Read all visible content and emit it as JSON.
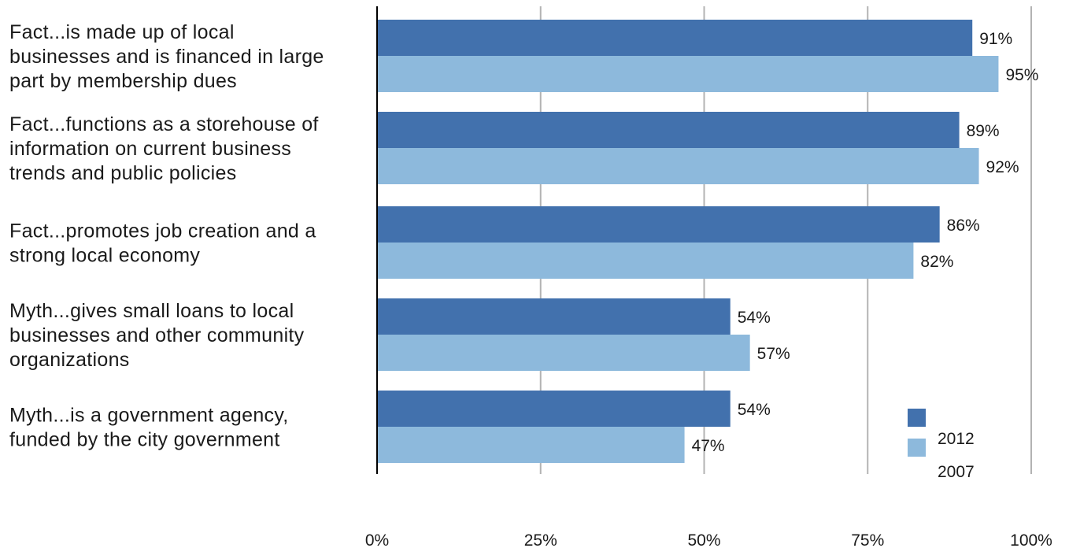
{
  "chart_data": {
    "type": "bar",
    "orientation": "horizontal",
    "categories": [
      [
        "Fact...is made up of local",
        "businesses and is financed in large",
        "part by membership dues"
      ],
      [
        "Fact...functions as a storehouse of",
        "information on current business",
        "trends and public policies"
      ],
      [
        "Fact...promotes job creation and a",
        "strong local economy"
      ],
      [
        "Myth...gives small loans to local",
        "businesses and other community",
        "organizations"
      ],
      [
        "Myth...is a government agency,",
        "funded by the city government"
      ]
    ],
    "series": [
      {
        "name": "2012",
        "values": [
          91,
          89,
          86,
          54,
          54
        ],
        "color": "#4271ad"
      },
      {
        "name": "2007",
        "values": [
          95,
          92,
          82,
          57,
          47
        ],
        "color": "#8db9dc"
      }
    ],
    "value_labels": [
      [
        "91%",
        "89%",
        "86%",
        "54%",
        "54%"
      ],
      [
        "95%",
        "92%",
        "82%",
        "57%",
        "47%"
      ]
    ],
    "xlim": [
      0,
      100
    ],
    "xticks": [
      0,
      25,
      50,
      75,
      100
    ],
    "xtick_labels": [
      "0%",
      "25%",
      "50%",
      "75%",
      "100%"
    ],
    "grid": true,
    "grid_color": "#b3b3b3",
    "axis_color": "#000000",
    "legend": {
      "position": "bottom-right",
      "entries": [
        "2012",
        "2007"
      ]
    }
  }
}
